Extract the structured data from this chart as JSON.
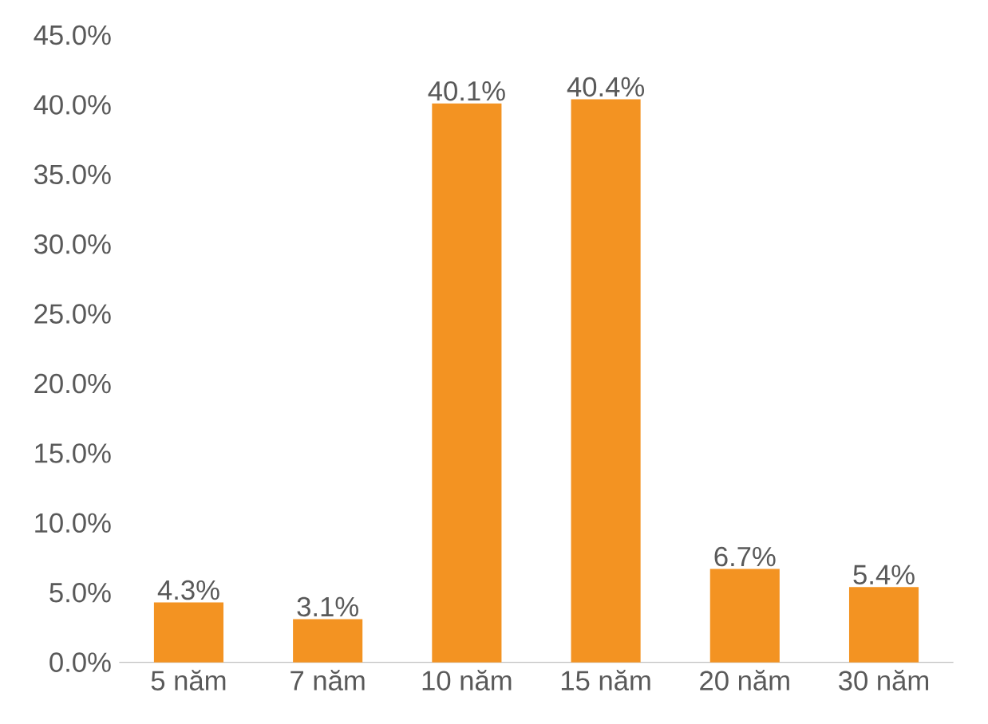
{
  "chart_data": {
    "type": "bar",
    "categories": [
      "5 năm",
      "7 năm",
      "10 năm",
      "15 năm",
      "20 năm",
      "30 năm"
    ],
    "values": [
      4.3,
      3.1,
      40.1,
      40.4,
      6.7,
      5.4
    ],
    "value_labels": [
      "4.3%",
      "3.1%",
      "40.1%",
      "40.4%",
      "6.7%",
      "5.4%"
    ],
    "color": "#f39322",
    "ylim": [
      0,
      45
    ],
    "yticks": [
      {
        "value": 0,
        "label": "0.0%"
      },
      {
        "value": 5,
        "label": "5.0%"
      },
      {
        "value": 10,
        "label": "10.0%"
      },
      {
        "value": 15,
        "label": "15.0%"
      },
      {
        "value": 20,
        "label": "20.0%"
      },
      {
        "value": 25,
        "label": "25.0%"
      },
      {
        "value": 30,
        "label": "30.0%"
      },
      {
        "value": 35,
        "label": "35.0%"
      },
      {
        "value": 40,
        "label": "40.0%"
      },
      {
        "value": 45,
        "label": "45.0%"
      }
    ],
    "grid": false
  }
}
